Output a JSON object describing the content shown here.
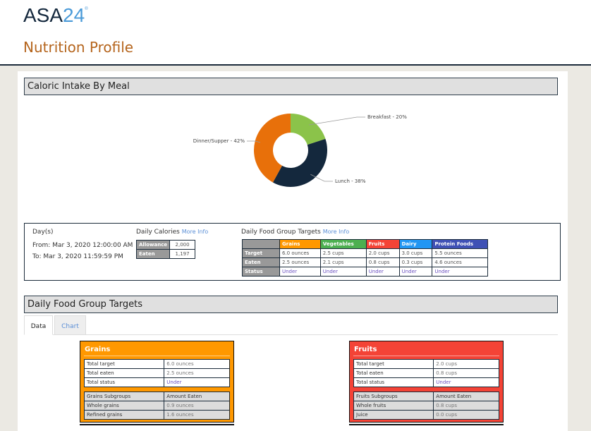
{
  "header": {
    "logo_main": "ASA",
    "logo_num": "24",
    "logo_mark": "®",
    "title": "Nutrition Profile"
  },
  "caloric": {
    "title": "Caloric Intake By Meal",
    "chart_data": {
      "type": "pie",
      "donut": true,
      "categories": [
        "Breakfast",
        "Lunch",
        "Dinner/Supper"
      ],
      "values": [
        20,
        38,
        42
      ],
      "labels": [
        "Breakfast - 20%",
        "Lunch - 38%",
        "Dinner/Supper - 42%"
      ],
      "colors": [
        "#8bc34a",
        "#14283d",
        "#e8700a"
      ]
    }
  },
  "summary": {
    "days_label": "Day(s)",
    "from": "From: Mar 3, 2020 12:00:00 AM",
    "to": "To: Mar 3, 2020 11:59:59 PM",
    "calories_title": "Daily Calories",
    "more_info": "More Info",
    "calories": [
      {
        "label": "Allowance",
        "value": "2,000"
      },
      {
        "label": "Eaten",
        "value": "1,197"
      }
    ],
    "fg_title": "Daily Food Group Targets",
    "fg_headers": [
      "Grains",
      "Vegetables",
      "Fruits",
      "Dairy",
      "Protein Foods"
    ],
    "fg_colors": [
      "#ff9800",
      "#4caf50",
      "#f44336",
      "#2196f3",
      "#3f51b5"
    ],
    "fg_rows": [
      {
        "label": "Target",
        "values": [
          "6.0 ounces",
          "2.5 cups",
          "2.0 cups",
          "3.0 cups",
          "5.5 ounces"
        ]
      },
      {
        "label": "Eaten",
        "values": [
          "2.5 ounces",
          "2.1 cups",
          "0.8 cups",
          "0.3 cups",
          "4.6 ounces"
        ]
      },
      {
        "label": "Status",
        "values": [
          "Under",
          "Under",
          "Under",
          "Under",
          "Under"
        ]
      }
    ]
  },
  "targets": {
    "title": "Daily Food Group Targets",
    "tabs": [
      "Data",
      "Chart"
    ],
    "active_tab": "Data",
    "cards": [
      {
        "title": "Grains",
        "color": "#ff9800",
        "rows": [
          [
            "Total target",
            "6.0 ounces"
          ],
          [
            "Total eaten",
            "2.5 ounces"
          ],
          [
            "Total status",
            "Under"
          ]
        ],
        "sub_header": [
          "Grains Subgroups",
          "Amount Eaten"
        ],
        "subs": [
          [
            "Whole grains",
            "0.9 ounces"
          ],
          [
            "Refined grains",
            "1.6 ounces"
          ]
        ]
      },
      {
        "title": "Fruits",
        "color": "#f44336",
        "rows": [
          [
            "Total target",
            "2.0 cups"
          ],
          [
            "Total eaten",
            "0.8 cups"
          ],
          [
            "Total status",
            "Under"
          ]
        ],
        "sub_header": [
          "Fruits Subgroups",
          "Amount Eaten"
        ],
        "subs": [
          [
            "Whole fruits",
            "0.8 cups"
          ],
          [
            "Juice",
            "0.0 cups"
          ]
        ]
      }
    ]
  }
}
